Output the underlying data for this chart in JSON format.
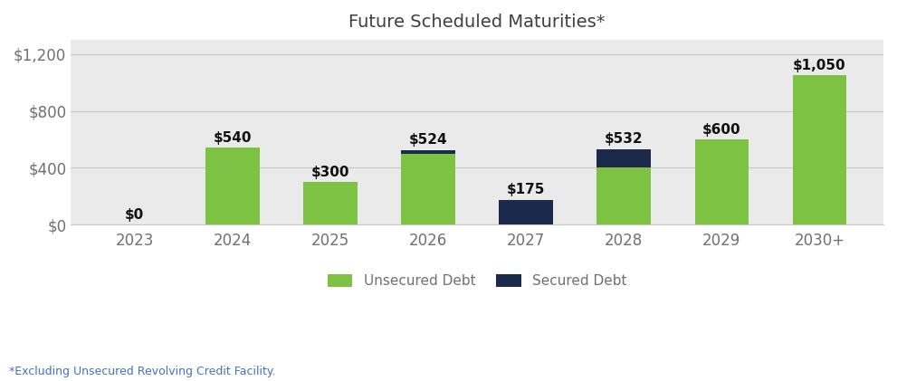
{
  "title": "Future Scheduled Maturities*",
  "footnote": "*Excluding Unsecured Revolving Credit Facility.",
  "categories": [
    "2023",
    "2024",
    "2025",
    "2026",
    "2027",
    "2028",
    "2029",
    "2030+"
  ],
  "unsecured": [
    0,
    540,
    300,
    500,
    0,
    400,
    600,
    1050
  ],
  "secured": [
    0,
    0,
    0,
    24,
    175,
    132,
    0,
    0
  ],
  "totals": [
    0,
    540,
    300,
    524,
    175,
    532,
    600,
    1050
  ],
  "unsecured_color": "#7DC242",
  "secured_color": "#1B2A4A",
  "background_color": "#FFFFFF",
  "plot_bg_color": "#EAEAEA",
  "title_color": "#404040",
  "label_color": "#111111",
  "tick_color": "#707070",
  "footnote_color": "#4472C4",
  "ylim": [
    0,
    1300
  ],
  "yticks": [
    0,
    400,
    800,
    1200
  ],
  "ytick_labels": [
    "$0",
    "$400",
    "$800",
    "$1,200"
  ],
  "bar_width": 0.55,
  "legend_labels": [
    "Unsecured Debt",
    "Secured Debt"
  ],
  "grid_color": "#C8C8C8",
  "title_fontsize": 14,
  "tick_fontsize": 12,
  "label_fontsize": 11,
  "footnote_fontsize": 9
}
